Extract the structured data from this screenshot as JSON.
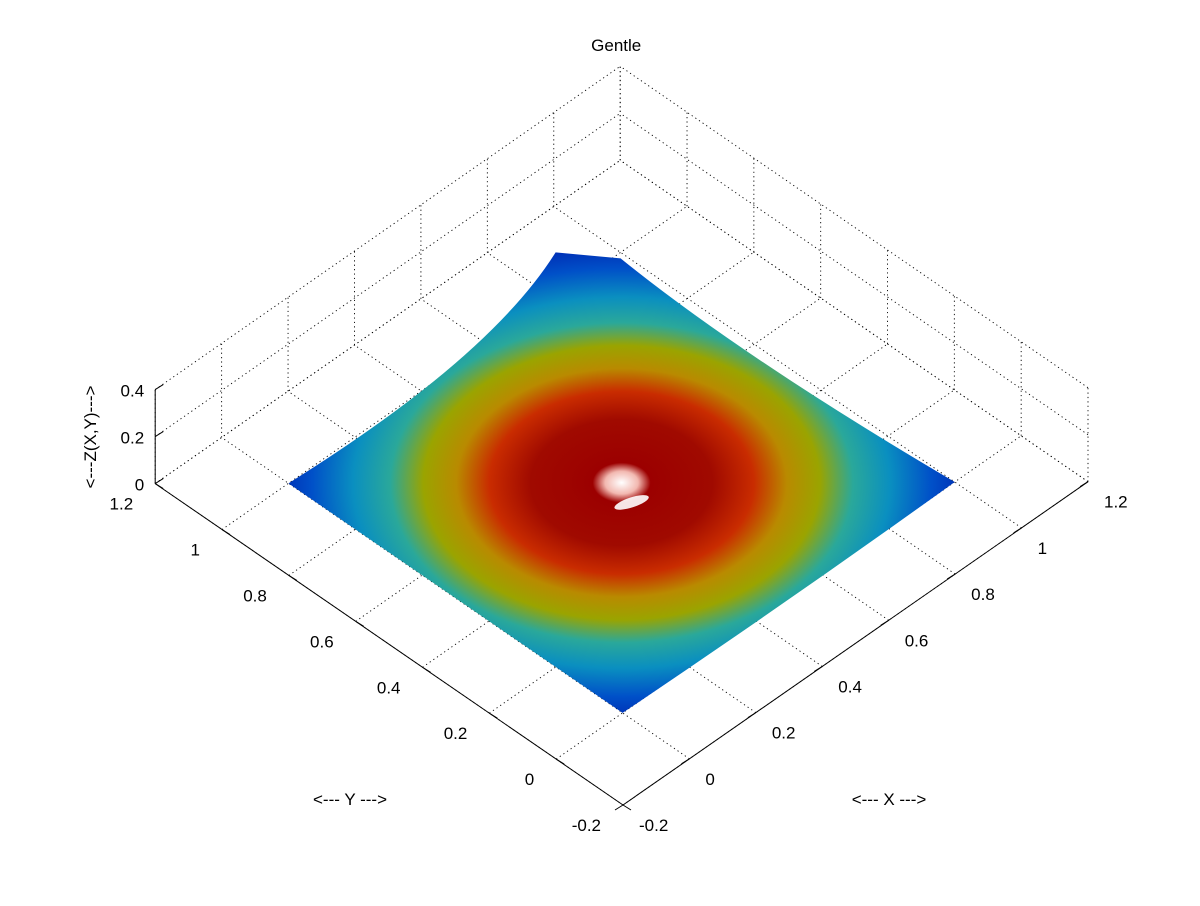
{
  "chart_data": {
    "type": "surface",
    "title": "Gentle",
    "xlabel": "<--- X --->",
    "ylabel": "<--- Y --->",
    "zlabel": "<---Z(X,Y)--->",
    "xlim": [
      -0.2,
      1.2
    ],
    "ylim": [
      -0.2,
      1.2
    ],
    "zlim": [
      0,
      0.4
    ],
    "x_ticks": [
      -0.2,
      0,
      0.2,
      0.4,
      0.6,
      0.8,
      1,
      1.2
    ],
    "y_ticks": [
      -0.2,
      0,
      0.2,
      0.4,
      0.6,
      0.8,
      1,
      1.2
    ],
    "z_ticks": [
      0,
      0.2,
      0.4
    ],
    "x_tick_labels": [
      "-0.2",
      "0",
      "0.2",
      "0.4",
      "0.6",
      "0.8",
      "1",
      "1.2"
    ],
    "y_tick_labels": [
      "-0.2",
      "0",
      "0.2",
      "0.4",
      "0.6",
      "0.8",
      "1",
      "1.2"
    ],
    "z_tick_labels": [
      "0",
      "0.2",
      "0.4"
    ],
    "grid": true,
    "colormap": "jet",
    "view": "top-down oblique (azimuth 45°)",
    "surface": {
      "x_range": [
        0,
        1
      ],
      "y_range": [
        0,
        1
      ],
      "peak": {
        "x": 0.5,
        "y": 0.5,
        "z": 0.35
      },
      "min_z": 0
    }
  }
}
